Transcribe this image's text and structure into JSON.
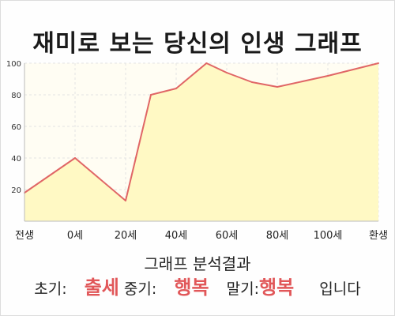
{
  "title": "재미로 보는 당신의 인생 그래프",
  "chart_data": {
    "type": "area",
    "x_labels": [
      "전생",
      "0세",
      "20세",
      "40세",
      "60세",
      "80세",
      "100세",
      "환생"
    ],
    "points": [
      {
        "x": -1,
        "y": 18
      },
      {
        "x": 0,
        "y": 40
      },
      {
        "x": 1,
        "y": 13
      },
      {
        "x": 1.5,
        "y": 80
      },
      {
        "x": 2,
        "y": 84
      },
      {
        "x": 2.6,
        "y": 100
      },
      {
        "x": 3,
        "y": 94
      },
      {
        "x": 3.5,
        "y": 88
      },
      {
        "x": 4,
        "y": 85
      },
      {
        "x": 5,
        "y": 92
      },
      {
        "x": 6,
        "y": 100
      }
    ],
    "y_ticks": [
      20,
      40,
      60,
      80,
      100
    ],
    "xlim": [
      -1,
      6
    ],
    "ylim": [
      0,
      100
    ],
    "grid": true,
    "colors": {
      "line": "#e06666",
      "fill": "#fff9c4",
      "grid": "#e3e3e3"
    }
  },
  "summary": {
    "title": "그래프 분석결과",
    "early_label": "초기:",
    "early_value": "출세",
    "mid_label": "중기:",
    "mid_value": "행복",
    "late_label": "말기:",
    "late_value": "행복",
    "ending": "입니다"
  }
}
